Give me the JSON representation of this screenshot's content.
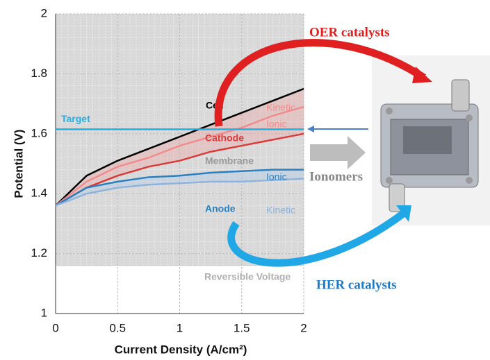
{
  "chart_data": {
    "type": "line",
    "x_label": "Current Density (A/cm²)",
    "y_label": "Potential (V)",
    "x": [
      0,
      0.25,
      0.5,
      0.75,
      1,
      1.25,
      1.5,
      1.75,
      2
    ],
    "series": [
      {
        "color": "#000000",
        "values": [
          1.36,
          1.46,
          1.51,
          1.55,
          1.59,
          1.63,
          1.67,
          1.71,
          1.75
        ]
      },
      {
        "color": "#f08c8c",
        "values": [
          1.36,
          1.44,
          1.49,
          1.52,
          1.56,
          1.59,
          1.62,
          1.66,
          1.69
        ]
      },
      {
        "color": "#d93a3a",
        "values": [
          1.36,
          1.42,
          1.46,
          1.49,
          1.51,
          1.54,
          1.56,
          1.58,
          1.6
        ]
      },
      {
        "color": "#2a7fc0",
        "values": [
          1.36,
          1.42,
          1.44,
          1.455,
          1.46,
          1.47,
          1.475,
          1.48,
          1.48
        ]
      },
      {
        "color": "#8fb3dd",
        "values": [
          1.36,
          1.4,
          1.42,
          1.43,
          1.435,
          1.44,
          1.44,
          1.445,
          1.45
        ]
      }
    ],
    "target": {
      "label": "Target",
      "value": 1.615,
      "color": "#1fb0e6"
    },
    "reversible": {
      "label": "Reversible Voltage",
      "value": 1.16
    },
    "annotations": [
      "Cell",
      "Kinetic",
      "Ionic",
      "Cathode",
      "Membrane",
      "Ionic",
      "Anode",
      "Kinetic"
    ],
    "xlim": [
      0,
      2
    ],
    "xticks": [
      0,
      0.5,
      1,
      1.5,
      2
    ],
    "ylim": [
      1,
      2
    ],
    "yticks": [
      1,
      1.2,
      1.4,
      1.6,
      1.8,
      2
    ],
    "grid": true
  },
  "diagram": {
    "oer": "OER catalysts",
    "ionomers": "Ionomers",
    "her": "HER catalysts"
  }
}
